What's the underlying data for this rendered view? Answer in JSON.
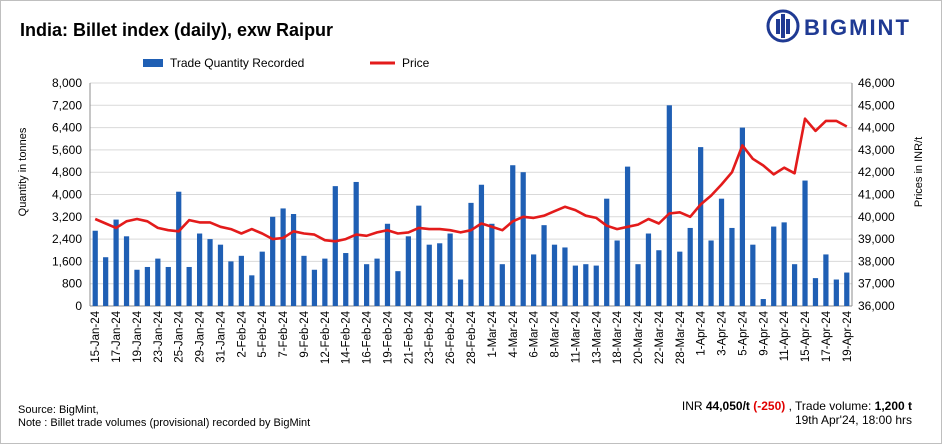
{
  "chart_data": {
    "type": "bar+line",
    "title": "India: Billet index (daily), exw Raipur",
    "brand": "BIGMINT",
    "legend": [
      {
        "name": "Trade Quantity Recorded",
        "color": "#1f5fb4",
        "kind": "bar"
      },
      {
        "name": "Price",
        "color": "#e31b1b",
        "kind": "line"
      }
    ],
    "legend_placement": "top",
    "y_left": {
      "label": "Quantity in tonnes",
      "min": 0,
      "max": 8000,
      "ticks": [
        "0",
        "800",
        "1,600",
        "2,400",
        "3,200",
        "4,000",
        "4,800",
        "5,600",
        "6,400",
        "7,200",
        "8,000"
      ]
    },
    "y_right": {
      "label": "Prices in INR/t",
      "min": 36000,
      "max": 46000,
      "ticks": [
        "36,000",
        "37,000",
        "38,000",
        "39,000",
        "40,000",
        "41,000",
        "42,000",
        "43,000",
        "44,000",
        "45,000",
        "46,000"
      ]
    },
    "x_tick_labels": [
      "15-Jan-24",
      "17-Jan-24",
      "19-Jan-24",
      "23-Jan-24",
      "25-Jan-24",
      "29-Jan-24",
      "31-Jan-24",
      "2-Feb-24",
      "5-Feb-24",
      "7-Feb-24",
      "9-Feb-24",
      "12-Feb-24",
      "14-Feb-24",
      "16-Feb-24",
      "19-Feb-24",
      "21-Feb-24",
      "23-Feb-24",
      "26-Feb-24",
      "28-Feb-24",
      "1-Mar-24",
      "4-Mar-24",
      "6-Mar-24",
      "8-Mar-24",
      "11-Mar-24",
      "13-Mar-24",
      "18-Mar-24",
      "20-Mar-24",
      "22-Mar-24",
      "28-Mar-24",
      "1-Apr-24",
      "3-Apr-24",
      "5-Apr-24",
      "9-Apr-24",
      "11-Apr-24",
      "15-Apr-24",
      "17-Apr-24",
      "19-Apr-24"
    ],
    "quantity": [
      2700,
      1750,
      3100,
      2500,
      1300,
      1400,
      1700,
      1400,
      4100,
      1400,
      2600,
      2400,
      2200,
      1600,
      1800,
      1100,
      1950,
      3200,
      3500,
      3300,
      1800,
      1300,
      1700,
      4300,
      1900,
      4450,
      1500,
      1700,
      2950,
      1250,
      2500,
      3600,
      2200,
      2250,
      2600,
      950,
      3700,
      4350,
      2950,
      1500,
      5050,
      4800,
      1850,
      2900,
      2200,
      2100,
      1450,
      1500,
      1450,
      3850,
      2350,
      5000,
      1500,
      2600,
      2000,
      7200,
      1950,
      2800,
      5700,
      2350,
      3850,
      2800,
      6400,
      2200,
      250,
      2850,
      3000,
      1500,
      4500,
      1000,
      1850,
      950,
      1200
    ],
    "price": [
      39900,
      39700,
      39500,
      39800,
      39900,
      39800,
      39500,
      39400,
      39350,
      39850,
      39750,
      39750,
      39550,
      39450,
      39250,
      39450,
      39250,
      39000,
      39050,
      39350,
      39250,
      39200,
      38950,
      38900,
      39000,
      39200,
      39150,
      39300,
      39400,
      39250,
      39300,
      39500,
      39450,
      39450,
      39400,
      39300,
      39400,
      39700,
      39550,
      39400,
      39800,
      40000,
      39950,
      40050,
      40250,
      40450,
      40300,
      40050,
      39950,
      39600,
      39450,
      39550,
      39650,
      39900,
      39700,
      40150,
      40200,
      40000,
      40550,
      40950,
      41450,
      42000,
      43200,
      42600,
      42300,
      41900,
      42200,
      41950,
      44400,
      43850,
      44300,
      44300,
      44050
    ],
    "summary": {
      "price_text": "INR ",
      "price_value": "44,050/t",
      "change": "(-250)",
      "volume_text": " , Trade volume:  ",
      "volume_value": "1,200 t",
      "timestamp": "19th Apr'24, 18:00 hrs"
    },
    "source": "Source: BigMint,",
    "note": "Note : Billet trade volumes (provisional) recorded by BigMint"
  }
}
